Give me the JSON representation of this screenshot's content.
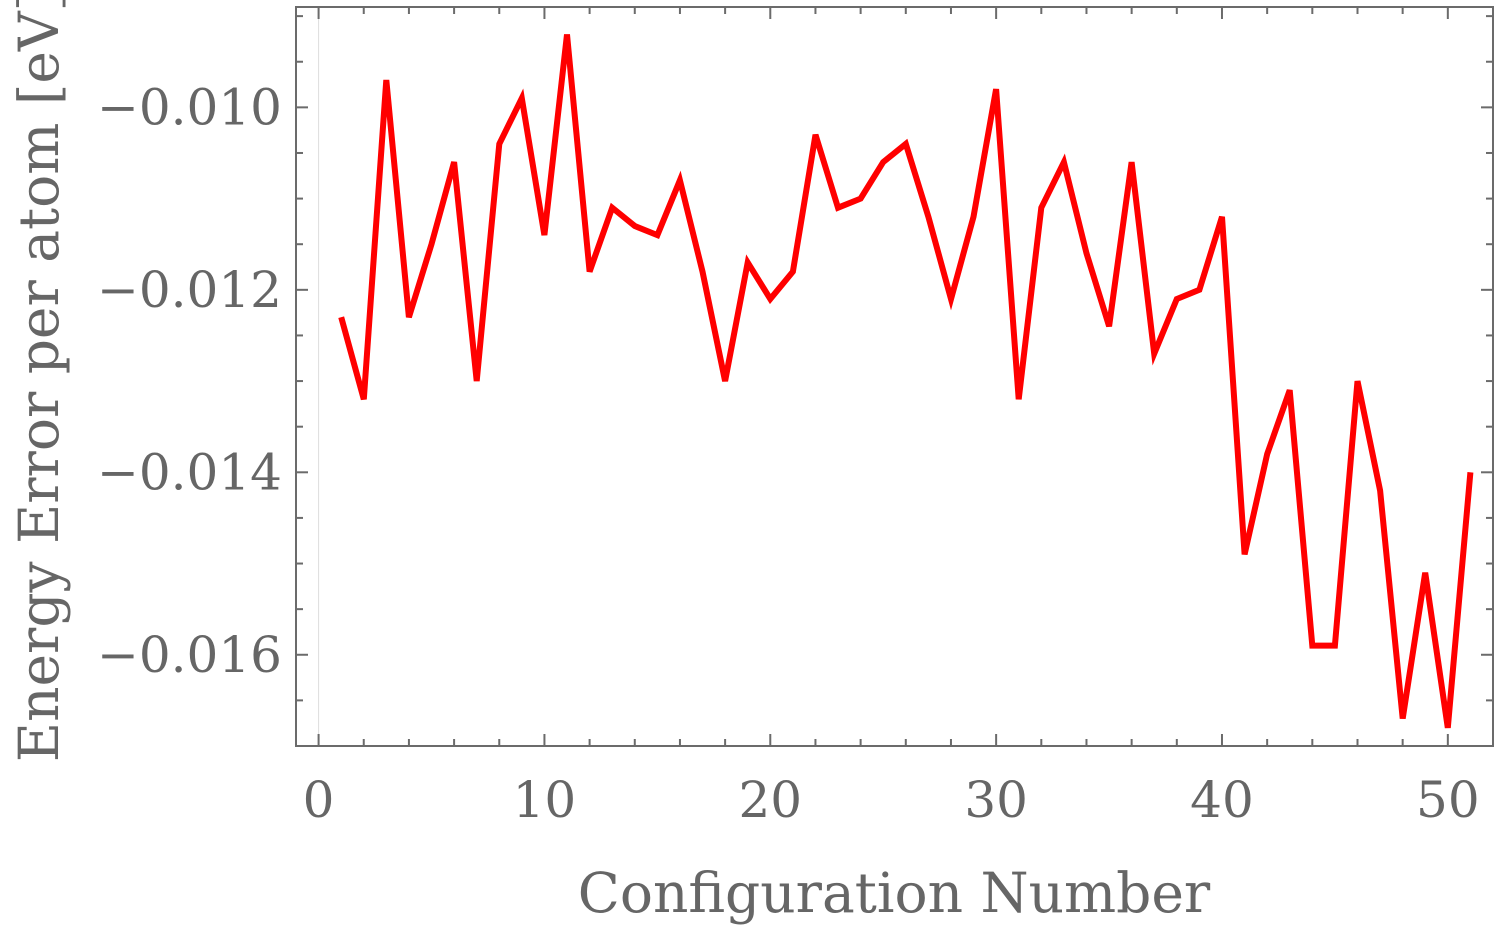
{
  "chart_data": {
    "type": "line",
    "xlabel": "Configuration Number",
    "ylabel": "Energy Error per atom [eV]",
    "xlim": [
      -1,
      52
    ],
    "ylim": [
      -0.017,
      -0.0089
    ],
    "xticks": [
      0,
      10,
      20,
      30,
      40,
      50
    ],
    "xtick_labels": [
      "0",
      "10",
      "20",
      "30",
      "40",
      "50"
    ],
    "yticks": [
      -0.01,
      -0.012,
      -0.014,
      -0.016
    ],
    "ytick_labels": [
      "−0.010",
      "−0.012",
      "−0.014",
      "−0.016"
    ],
    "grid": false,
    "series": [
      {
        "color": "#ff0000",
        "x": [
          1,
          2,
          3,
          4,
          5,
          6,
          7,
          8,
          9,
          10,
          11,
          12,
          13,
          14,
          15,
          16,
          17,
          18,
          19,
          20,
          21,
          22,
          23,
          24,
          25,
          26,
          27,
          28,
          29,
          30,
          31,
          32,
          33,
          34,
          35,
          36,
          37,
          38,
          39,
          40,
          41,
          42,
          43,
          44,
          45,
          46,
          47,
          48,
          49,
          50,
          51
        ],
        "y": [
          -0.0123,
          -0.0132,
          -0.0097,
          -0.0123,
          -0.0115,
          -0.0106,
          -0.013,
          -0.0104,
          -0.0099,
          -0.0114,
          -0.0092,
          -0.0118,
          -0.0111,
          -0.0113,
          -0.0114,
          -0.0108,
          -0.0118,
          -0.013,
          -0.0117,
          -0.0121,
          -0.0118,
          -0.0103,
          -0.0111,
          -0.011,
          -0.0106,
          -0.0104,
          -0.0112,
          -0.0121,
          -0.0112,
          -0.0098,
          -0.0132,
          -0.0111,
          -0.0106,
          -0.0116,
          -0.0124,
          -0.0106,
          -0.0127,
          -0.0121,
          -0.012,
          -0.0112,
          -0.0149,
          -0.0138,
          -0.0131,
          -0.0159,
          -0.0159,
          -0.013,
          -0.0142,
          -0.0167,
          -0.0151,
          -0.0168,
          -0.014
        ]
      }
    ]
  }
}
